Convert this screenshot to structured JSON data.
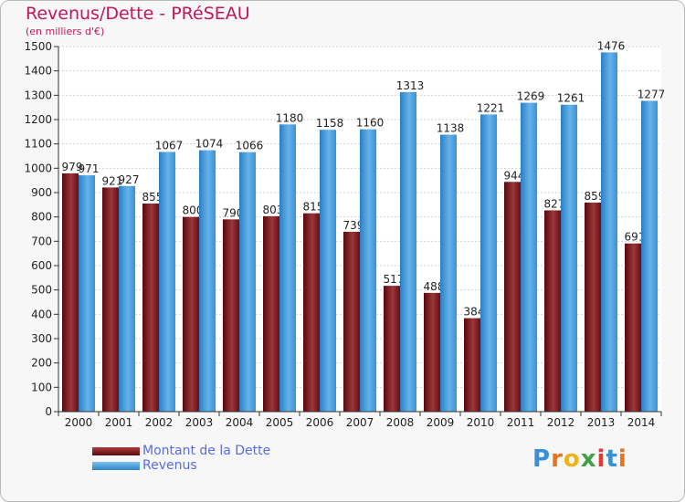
{
  "title": "Revenus/Dette - PRéSEAU",
  "subtitle": "(en milliers d'€)",
  "logo": {
    "text": "Proxiti",
    "letter_colors": [
      "#3a8fd6",
      "#e8741c",
      "#f0b21a",
      "#43a047",
      "#e53935",
      "#3a8fd6",
      "#e8741c"
    ]
  },
  "colors": {
    "dette_dark": "#6b0b14",
    "dette_light": "#a84040",
    "revenus_dark": "#2e86c8",
    "revenus_light": "#63b1ea"
  },
  "chart_data": {
    "type": "bar",
    "title": "Revenus/Dette - PRéSEAU",
    "ylabel": "(en milliers d'€)",
    "ylim": [
      0,
      1500
    ],
    "yticks": [
      0,
      100,
      200,
      300,
      400,
      500,
      600,
      700,
      800,
      900,
      1000,
      1100,
      1200,
      1300,
      1400,
      1500
    ],
    "grid": true,
    "legend": "bottom-left",
    "categories": [
      "2000",
      "2001",
      "2002",
      "2003",
      "2004",
      "2005",
      "2006",
      "2007",
      "2008",
      "2009",
      "2010",
      "2011",
      "2012",
      "2013",
      "2014"
    ],
    "series": [
      {
        "name": "Montant de la Dette",
        "values": [
          979,
          921,
          855,
          800,
          790,
          803,
          815,
          739,
          517,
          488,
          384,
          944,
          827,
          859,
          691
        ],
        "labels": [
          "979",
          "921",
          "855",
          "800",
          "790",
          "803",
          "815",
          "739",
          "517",
          "488",
          "384",
          "944",
          "827",
          "859",
          "691"
        ]
      },
      {
        "name": "Revenus",
        "values": [
          971,
          927,
          1067,
          1074,
          1066,
          1180,
          1158,
          1160,
          1313,
          1138,
          1221,
          1269,
          1261,
          1476,
          1277
        ],
        "labels": [
          "971",
          "927",
          "1067",
          "1074",
          "1066",
          "1180",
          "1158",
          "1160",
          "1313",
          "1138",
          "1221",
          "1269",
          "1261",
          "1476",
          "1277"
        ]
      }
    ]
  }
}
